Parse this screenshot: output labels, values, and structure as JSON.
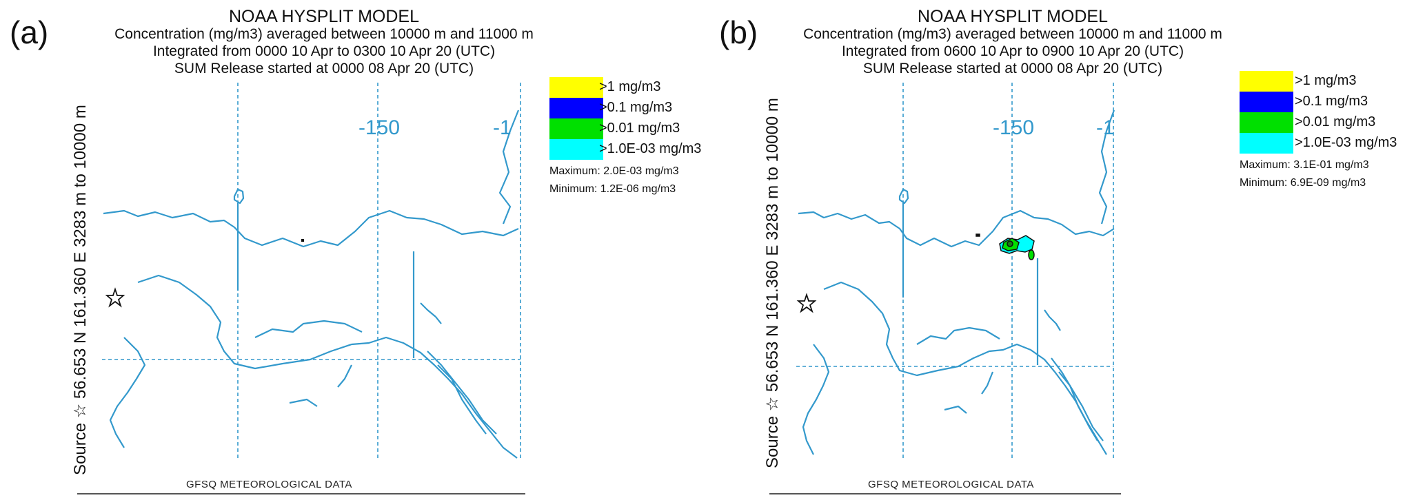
{
  "panels": [
    {
      "tag": "(a)",
      "title": "NOAA HYSPLIT MODEL",
      "line1": "Concentration  (mg/m3) averaged between 10000 m and 11000 m",
      "line2": "Integrated from 0000 10 Apr to 0300 10 Apr 20 (UTC)",
      "line3": "SUM  Release started at 0000 08 Apr 20 (UTC)",
      "side_label": "Source ☆  56.653  N 161.360  E   3283 m to 10000 m",
      "lon_label": "-150",
      "lon_label_cut": "-1",
      "legend": [
        ">1 mg/m3",
        ">0.1 mg/m3",
        ">0.01 mg/m3",
        ">1.0E-03 mg/m3"
      ],
      "maximum": "Maximum: 2.0E-03 mg/m3",
      "minimum": "Minimum: 1.2E-06 mg/m3",
      "footer": "GFSQ METEOROLOGICAL DATA"
    },
    {
      "tag": "(b)",
      "title": "NOAA HYSPLIT MODEL",
      "line1": "Concentration  (mg/m3) averaged between 10000 m and 11000 m",
      "line2": "Integrated from 0600 10 Apr to 0900 10 Apr 20 (UTC)",
      "line3": "SUM  Release started at 0000 08 Apr 20 (UTC)",
      "side_label": "Source ☆  56.653  N 161.360  E   3283 m to 10000 m",
      "lon_label": "-150",
      "lon_label_cut": "-1",
      "legend": [
        ">1 mg/m3",
        ">0.1 mg/m3",
        ">0.01 mg/m3",
        ">1.0E-03 mg/m3"
      ],
      "maximum": "Maximum: 3.1E-01 mg/m3",
      "minimum": "Minimum: 6.9E-09 mg/m3",
      "footer": "GFSQ METEOROLOGICAL DATA"
    }
  ],
  "colors": {
    "legend": [
      "#ffff00",
      "#0000ff",
      "#00e000",
      "#00ffff"
    ],
    "coast": "#3399cc",
    "grid": "#3399cc"
  }
}
